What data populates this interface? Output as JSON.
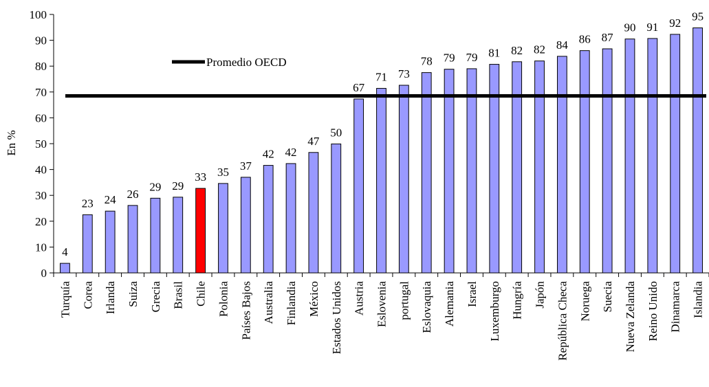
{
  "chart_data": {
    "type": "bar",
    "title": "",
    "xlabel": "",
    "ylabel": "En %",
    "ylim": [
      0,
      100
    ],
    "yticks": [
      0,
      10,
      20,
      30,
      40,
      50,
      60,
      70,
      80,
      90,
      100
    ],
    "grid": false,
    "categories": [
      "Turquía",
      "Corea",
      "Irlanda",
      "Suiza",
      "Grecia",
      "Brasil",
      "Chile",
      "Polonia",
      "Países Bajos",
      "Australia",
      "Finlandia",
      "México",
      "Estados Unidos",
      "Austria",
      "Eslovenia",
      "portugal",
      "Eslovaquia",
      "Alemania",
      "Israel",
      "Luxemburgo",
      "Hungría",
      "Japón",
      "República Checa",
      "Noruega",
      "Suecia",
      "Nueva Zelanda",
      "Reino Unido",
      "Dinamarca",
      "Islandia"
    ],
    "values": [
      4,
      23,
      24,
      26,
      29,
      29,
      33,
      35,
      37,
      42,
      42,
      47,
      50,
      67,
      71,
      73,
      78,
      79,
      79,
      81,
      82,
      82,
      84,
      86,
      87,
      90,
      91,
      92,
      95
    ],
    "bar_values": [
      3.7,
      22.5,
      23.9,
      26.1,
      28.9,
      29.3,
      32.7,
      34.6,
      37.0,
      41.6,
      42.3,
      46.6,
      49.9,
      67.3,
      71.4,
      72.6,
      77.5,
      78.8,
      79.0,
      80.7,
      81.7,
      82.0,
      83.8,
      86.0,
      86.7,
      90.5,
      90.7,
      92.3,
      94.8
    ],
    "highlight": "Chile",
    "bar_color": "#9999ff",
    "highlight_color": "#ff0000",
    "reference_line": {
      "label": "Promedio OECD",
      "value": 68.5,
      "color": "#000000"
    },
    "legend_position": "top-left"
  }
}
